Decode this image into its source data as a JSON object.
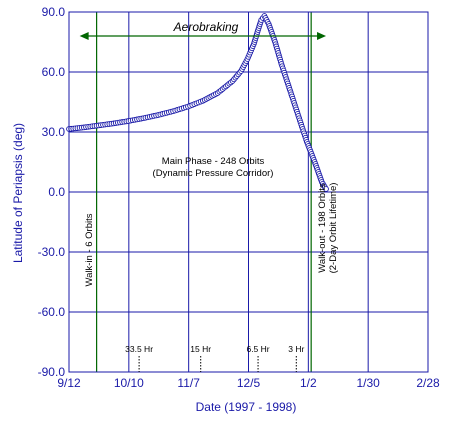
{
  "chart_data": {
    "type": "scatter",
    "title": "",
    "xlabel": "Date (1997 - 1998)",
    "ylabel": "Latitude of Periapsis (deg)",
    "ylim": [
      -90,
      90
    ],
    "xlim_days": [
      0,
      169
    ],
    "x_tick_labels": [
      "9/12",
      "10/10",
      "11/7",
      "12/5",
      "1/2",
      "1/30",
      "2/28"
    ],
    "y_tick_labels": [
      "90.0",
      "60.0",
      "30.0",
      "0.0",
      "-30.0",
      "-60.0",
      "-90.0"
    ],
    "grid": true,
    "series": [
      {
        "name": "",
        "color": "#1a1aa8",
        "marker": "open-circle",
        "points": [
          [
            0,
            31.5
          ],
          [
            7,
            32.3
          ],
          [
            14,
            33.3
          ],
          [
            21,
            34.3
          ],
          [
            28,
            35.5
          ],
          [
            35,
            36.9
          ],
          [
            42,
            38.5
          ],
          [
            49,
            40.4
          ],
          [
            56,
            42.7
          ],
          [
            63,
            45.6
          ],
          [
            70,
            49.5
          ],
          [
            77,
            55.5
          ],
          [
            81,
            60.5
          ],
          [
            84,
            66.5
          ],
          [
            87,
            74.0
          ],
          [
            89,
            81.0
          ],
          [
            90.5,
            86.0
          ],
          [
            92,
            88.0
          ],
          [
            94,
            84.0
          ],
          [
            97,
            75.0
          ],
          [
            100,
            64.0
          ],
          [
            104,
            51.0
          ],
          [
            108,
            38.0
          ],
          [
            112,
            25.0
          ],
          [
            116,
            14.0
          ],
          [
            119,
            5.0
          ],
          [
            121,
            1.5
          ]
        ]
      }
    ],
    "phase_lines_days": [
      13,
      114
    ],
    "aerobraking_span_days": [
      5,
      121
    ],
    "annotations": {
      "aerobraking": "Aerobraking",
      "main_phase_line1": "Main Phase - 248 Orbits",
      "main_phase_line2": "(Dynamic Pressure Corridor)",
      "walk_in": "Walk-in - 6 Orbits",
      "walk_out_line1": "Walk-out - 198 Orbits",
      "walk_out_line2": "(2-Day Orbit Lifetime)"
    },
    "period_markers": [
      {
        "label": "33.5 Hr",
        "day": 33
      },
      {
        "label": "15 Hr",
        "day": 62
      },
      {
        "label": "6.5 Hr",
        "day": 89
      },
      {
        "label": "3 Hr",
        "day": 107
      }
    ]
  },
  "colors": {
    "axis": "#1a1aa8",
    "grid": "#1a1aa8",
    "phase_line": "#006600",
    "arrow": "#006600",
    "data": "#1a1aa8"
  }
}
